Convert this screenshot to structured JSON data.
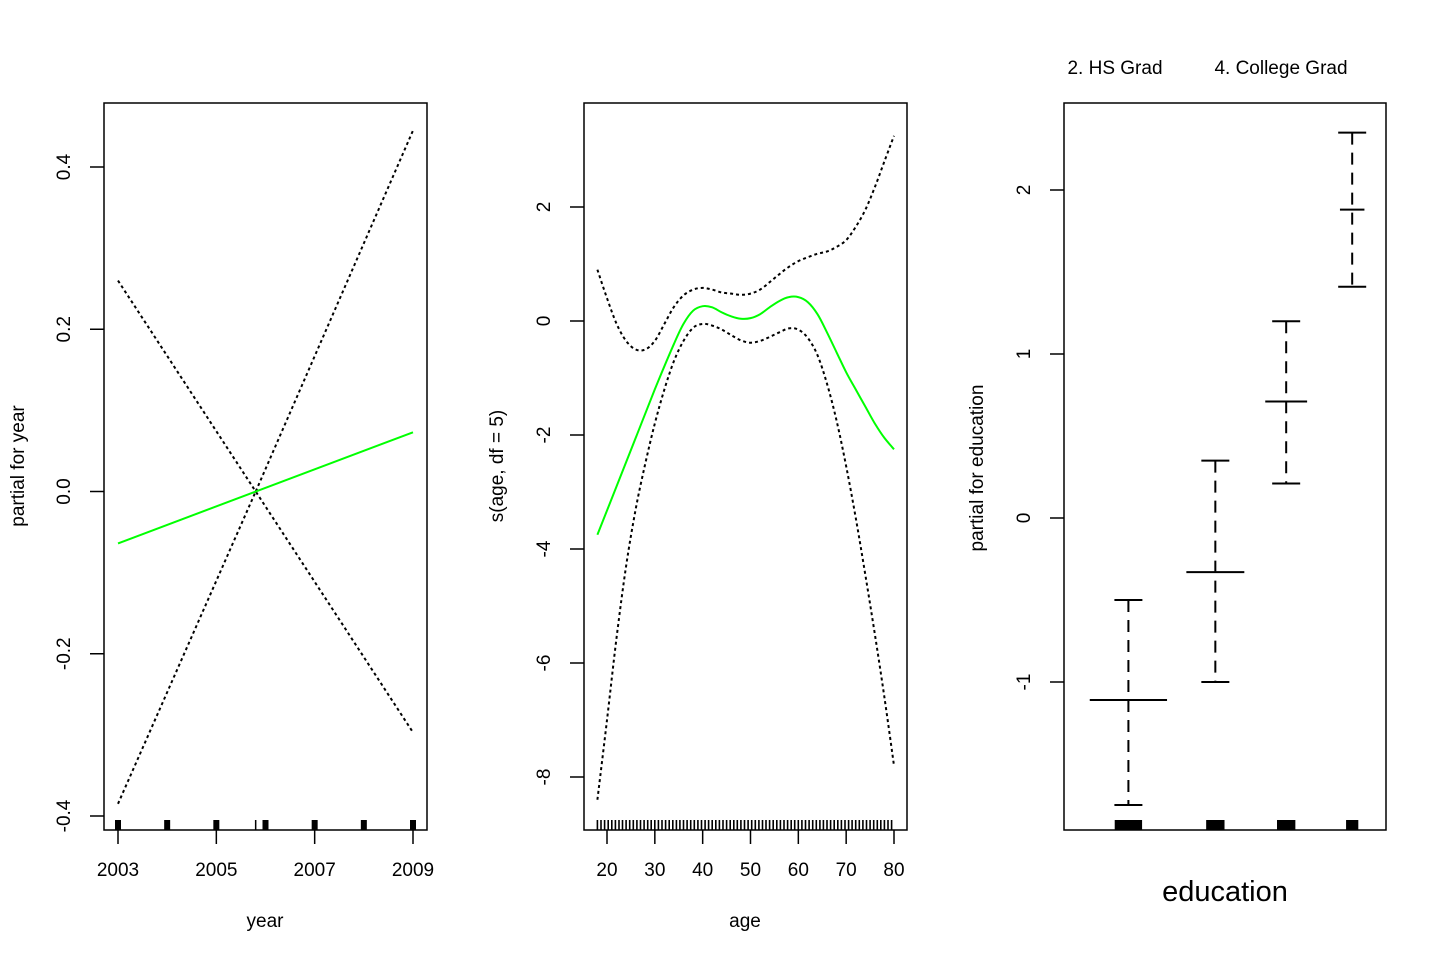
{
  "colors": {
    "fit": "#00ff00",
    "band": "#000000",
    "rug": "#000000"
  },
  "chart_data": [
    {
      "type": "line",
      "xlabel": "year",
      "ylabel": "partial for year",
      "xlim": [
        2003,
        2009
      ],
      "ylim": [
        -0.4,
        0.45
      ],
      "x_ticks": [
        2003,
        2005,
        2007,
        2009
      ],
      "y_ticks": [
        -0.4,
        -0.2,
        0.0,
        0.2,
        0.4
      ],
      "x_tick_labels": [
        "2003",
        "2005",
        "2007",
        "2009"
      ],
      "y_tick_labels": [
        "-0.4",
        "-0.2",
        "0.0",
        "0.2",
        "0.4"
      ],
      "fit": {
        "x": [
          2003,
          2009
        ],
        "y": [
          -0.064,
          0.073
        ]
      },
      "upper": {
        "x": [
          2003,
          2005.8,
          2009
        ],
        "y": [
          0.26,
          0.0,
          0.445
        ]
      },
      "lower": {
        "x": [
          2003,
          2005.8,
          2009
        ],
        "y": [
          -0.385,
          0.0,
          -0.297
        ]
      },
      "rug": [
        2003,
        2004,
        2005,
        2005.8,
        2006,
        2007,
        2008,
        2009
      ]
    },
    {
      "type": "line",
      "xlabel": "age",
      "ylabel": "s(age, df = 5)",
      "xlim": [
        18,
        80
      ],
      "ylim": [
        -8.5,
        3.3
      ],
      "x_ticks": [
        20,
        30,
        40,
        50,
        60,
        70,
        80
      ],
      "y_ticks": [
        -8,
        -6,
        -4,
        -2,
        0,
        2
      ],
      "x_tick_labels": [
        "20",
        "30",
        "40",
        "50",
        "60",
        "70",
        "80"
      ],
      "y_tick_labels": [
        "-8",
        "-6",
        "-4",
        "-2",
        "0",
        "2"
      ],
      "fit": {
        "x": [
          18,
          22,
          26,
          30,
          34,
          36,
          38,
          40,
          42,
          44,
          46,
          48,
          50,
          52,
          54,
          56,
          58,
          60,
          62,
          64,
          66,
          68,
          70,
          72,
          74,
          76,
          78,
          80
        ],
        "y": [
          -3.75,
          -2.9,
          -2.05,
          -1.2,
          -0.4,
          -0.05,
          0.18,
          0.26,
          0.24,
          0.15,
          0.08,
          0.04,
          0.05,
          0.12,
          0.24,
          0.35,
          0.42,
          0.42,
          0.33,
          0.12,
          -0.2,
          -0.55,
          -0.9,
          -1.2,
          -1.5,
          -1.8,
          -2.05,
          -2.25
        ]
      },
      "upper": {
        "x": [
          18,
          20,
          22,
          24,
          26,
          28,
          30,
          32,
          34,
          36,
          38,
          40,
          42,
          44,
          46,
          48,
          50,
          52,
          54,
          56,
          58,
          60,
          62,
          64,
          66,
          68,
          70,
          72,
          74,
          76,
          78,
          80
        ],
        "y": [
          0.9,
          0.4,
          -0.05,
          -0.35,
          -0.5,
          -0.5,
          -0.35,
          -0.05,
          0.25,
          0.45,
          0.55,
          0.58,
          0.55,
          0.5,
          0.48,
          0.46,
          0.48,
          0.55,
          0.68,
          0.82,
          0.95,
          1.05,
          1.12,
          1.18,
          1.22,
          1.3,
          1.42,
          1.65,
          1.95,
          2.35,
          2.8,
          3.25
        ]
      },
      "lower": {
        "x": [
          18,
          20,
          22,
          24,
          26,
          28,
          30,
          32,
          34,
          36,
          38,
          40,
          42,
          44,
          46,
          48,
          50,
          52,
          54,
          56,
          58,
          60,
          62,
          64,
          66,
          68,
          70,
          72,
          74,
          76,
          78,
          80
        ],
        "y": [
          -8.4,
          -7.0,
          -5.55,
          -4.3,
          -3.3,
          -2.5,
          -1.8,
          -1.2,
          -0.7,
          -0.35,
          -0.12,
          -0.05,
          -0.08,
          -0.15,
          -0.25,
          -0.34,
          -0.38,
          -0.35,
          -0.28,
          -0.2,
          -0.13,
          -0.15,
          -0.3,
          -0.6,
          -1.1,
          -1.75,
          -2.55,
          -3.45,
          -4.45,
          -5.5,
          -6.6,
          -7.8
        ]
      },
      "rug_range": [
        18,
        80
      ],
      "rug_step": 0.75
    },
    {
      "type": "bar",
      "xlabel": "education",
      "ylabel": "partial for education",
      "ylim": [
        -1.9,
        2.5
      ],
      "y_ticks": [
        -1,
        0,
        1,
        2
      ],
      "y_tick_labels": [
        "-1",
        "0",
        "1",
        "2"
      ],
      "top_labels": [
        "2. HS Grad",
        "4. College Grad"
      ],
      "levels": [
        {
          "x": 0.2,
          "hw": 0.12,
          "est": -1.11,
          "lo": -1.75,
          "hi": -0.5
        },
        {
          "x": 0.47,
          "hw": 0.09,
          "est": -0.33,
          "lo": -1.0,
          "hi": 0.35
        },
        {
          "x": 0.69,
          "hw": 0.065,
          "est": 0.71,
          "lo": 0.21,
          "hi": 1.2
        },
        {
          "x": 0.895,
          "hw": 0.038,
          "est": 1.88,
          "lo": 1.41,
          "hi": 2.35
        }
      ],
      "rug_blocks": [
        {
          "x": 0.2,
          "w": 0.085
        },
        {
          "x": 0.47,
          "w": 0.057
        },
        {
          "x": 0.69,
          "w": 0.057
        },
        {
          "x": 0.895,
          "w": 0.038
        }
      ]
    }
  ]
}
